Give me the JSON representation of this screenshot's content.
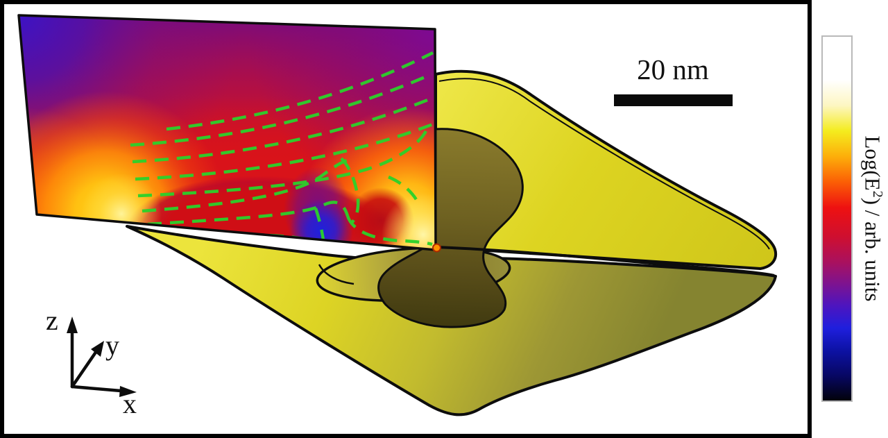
{
  "figure": {
    "scale_bar": {
      "label": "20 nm"
    },
    "axes_triad": {
      "z_label": "z",
      "y_label": "y",
      "x_label": "x"
    },
    "colorbar": {
      "label_prefix": "Log(E",
      "label_superscript": "2",
      "label_suffix": ") / arb. units",
      "border_color": "#b9b9b9",
      "stops": [
        {
          "o": 0.0,
          "c": "#ffffff"
        },
        {
          "o": 0.12,
          "c": "#ffffff"
        },
        {
          "o": 0.19,
          "c": "#fdf6c2"
        },
        {
          "o": 0.26,
          "c": "#f4ec1e"
        },
        {
          "o": 0.33,
          "c": "#fdae0a"
        },
        {
          "o": 0.4,
          "c": "#fb5e05"
        },
        {
          "o": 0.47,
          "c": "#ee1111"
        },
        {
          "o": 0.55,
          "c": "#ce0f30"
        },
        {
          "o": 0.62,
          "c": "#a9115f"
        },
        {
          "o": 0.68,
          "c": "#7c1391"
        },
        {
          "o": 0.74,
          "c": "#4c15c0"
        },
        {
          "o": 0.8,
          "c": "#1f1fdd"
        },
        {
          "o": 0.86,
          "c": "#0d12a5"
        },
        {
          "o": 0.93,
          "c": "#070763"
        },
        {
          "o": 1.0,
          "c": "#020208"
        }
      ]
    },
    "colors": {
      "gold_bright": "#e8e02c",
      "gold_shaded": "#8d8a2f",
      "cut_face_dark": "#5f5419",
      "streamline_green": "#2bd22b",
      "marker_orange": "#ff9100",
      "frame_black": "#000000"
    }
  },
  "chart_data": {
    "type": "heatmap",
    "title": "",
    "colorbar_label": "Log(E2) / arb. units",
    "value_units": "arb. units",
    "colorbar_numeric_ticks": [],
    "scale_bar": {
      "label": "20 nm",
      "length_nm": 20
    },
    "axes_indicator_labels": [
      "z",
      "y",
      "x"
    ],
    "colormap_top_to_bottom": [
      "#ffffff",
      "#fdf6c2",
      "#f4ec1e",
      "#fdae0a",
      "#fb5e05",
      "#ee1111",
      "#ce0f30",
      "#a9115f",
      "#7c1391",
      "#4c15c0",
      "#1f1fdd",
      "#0d12a5",
      "#070763",
      "#020208"
    ],
    "legend_position": "right",
    "notes_visible_on_screen": []
  }
}
